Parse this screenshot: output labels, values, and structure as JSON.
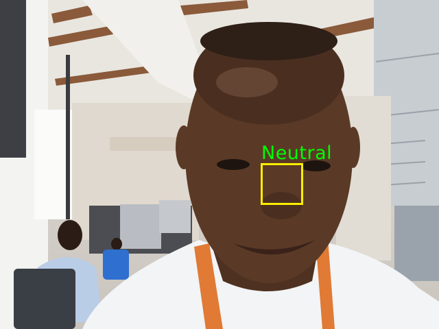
{
  "detection": {
    "label": "Neutral",
    "label_color": "#00ff00",
    "box_color": "#ffee00"
  },
  "scene": {
    "description_icon": "webcam-frame",
    "skin_color": "#5a3a26",
    "shirt_color": "#f2f4f6",
    "collar_accent": "#e07a35"
  }
}
